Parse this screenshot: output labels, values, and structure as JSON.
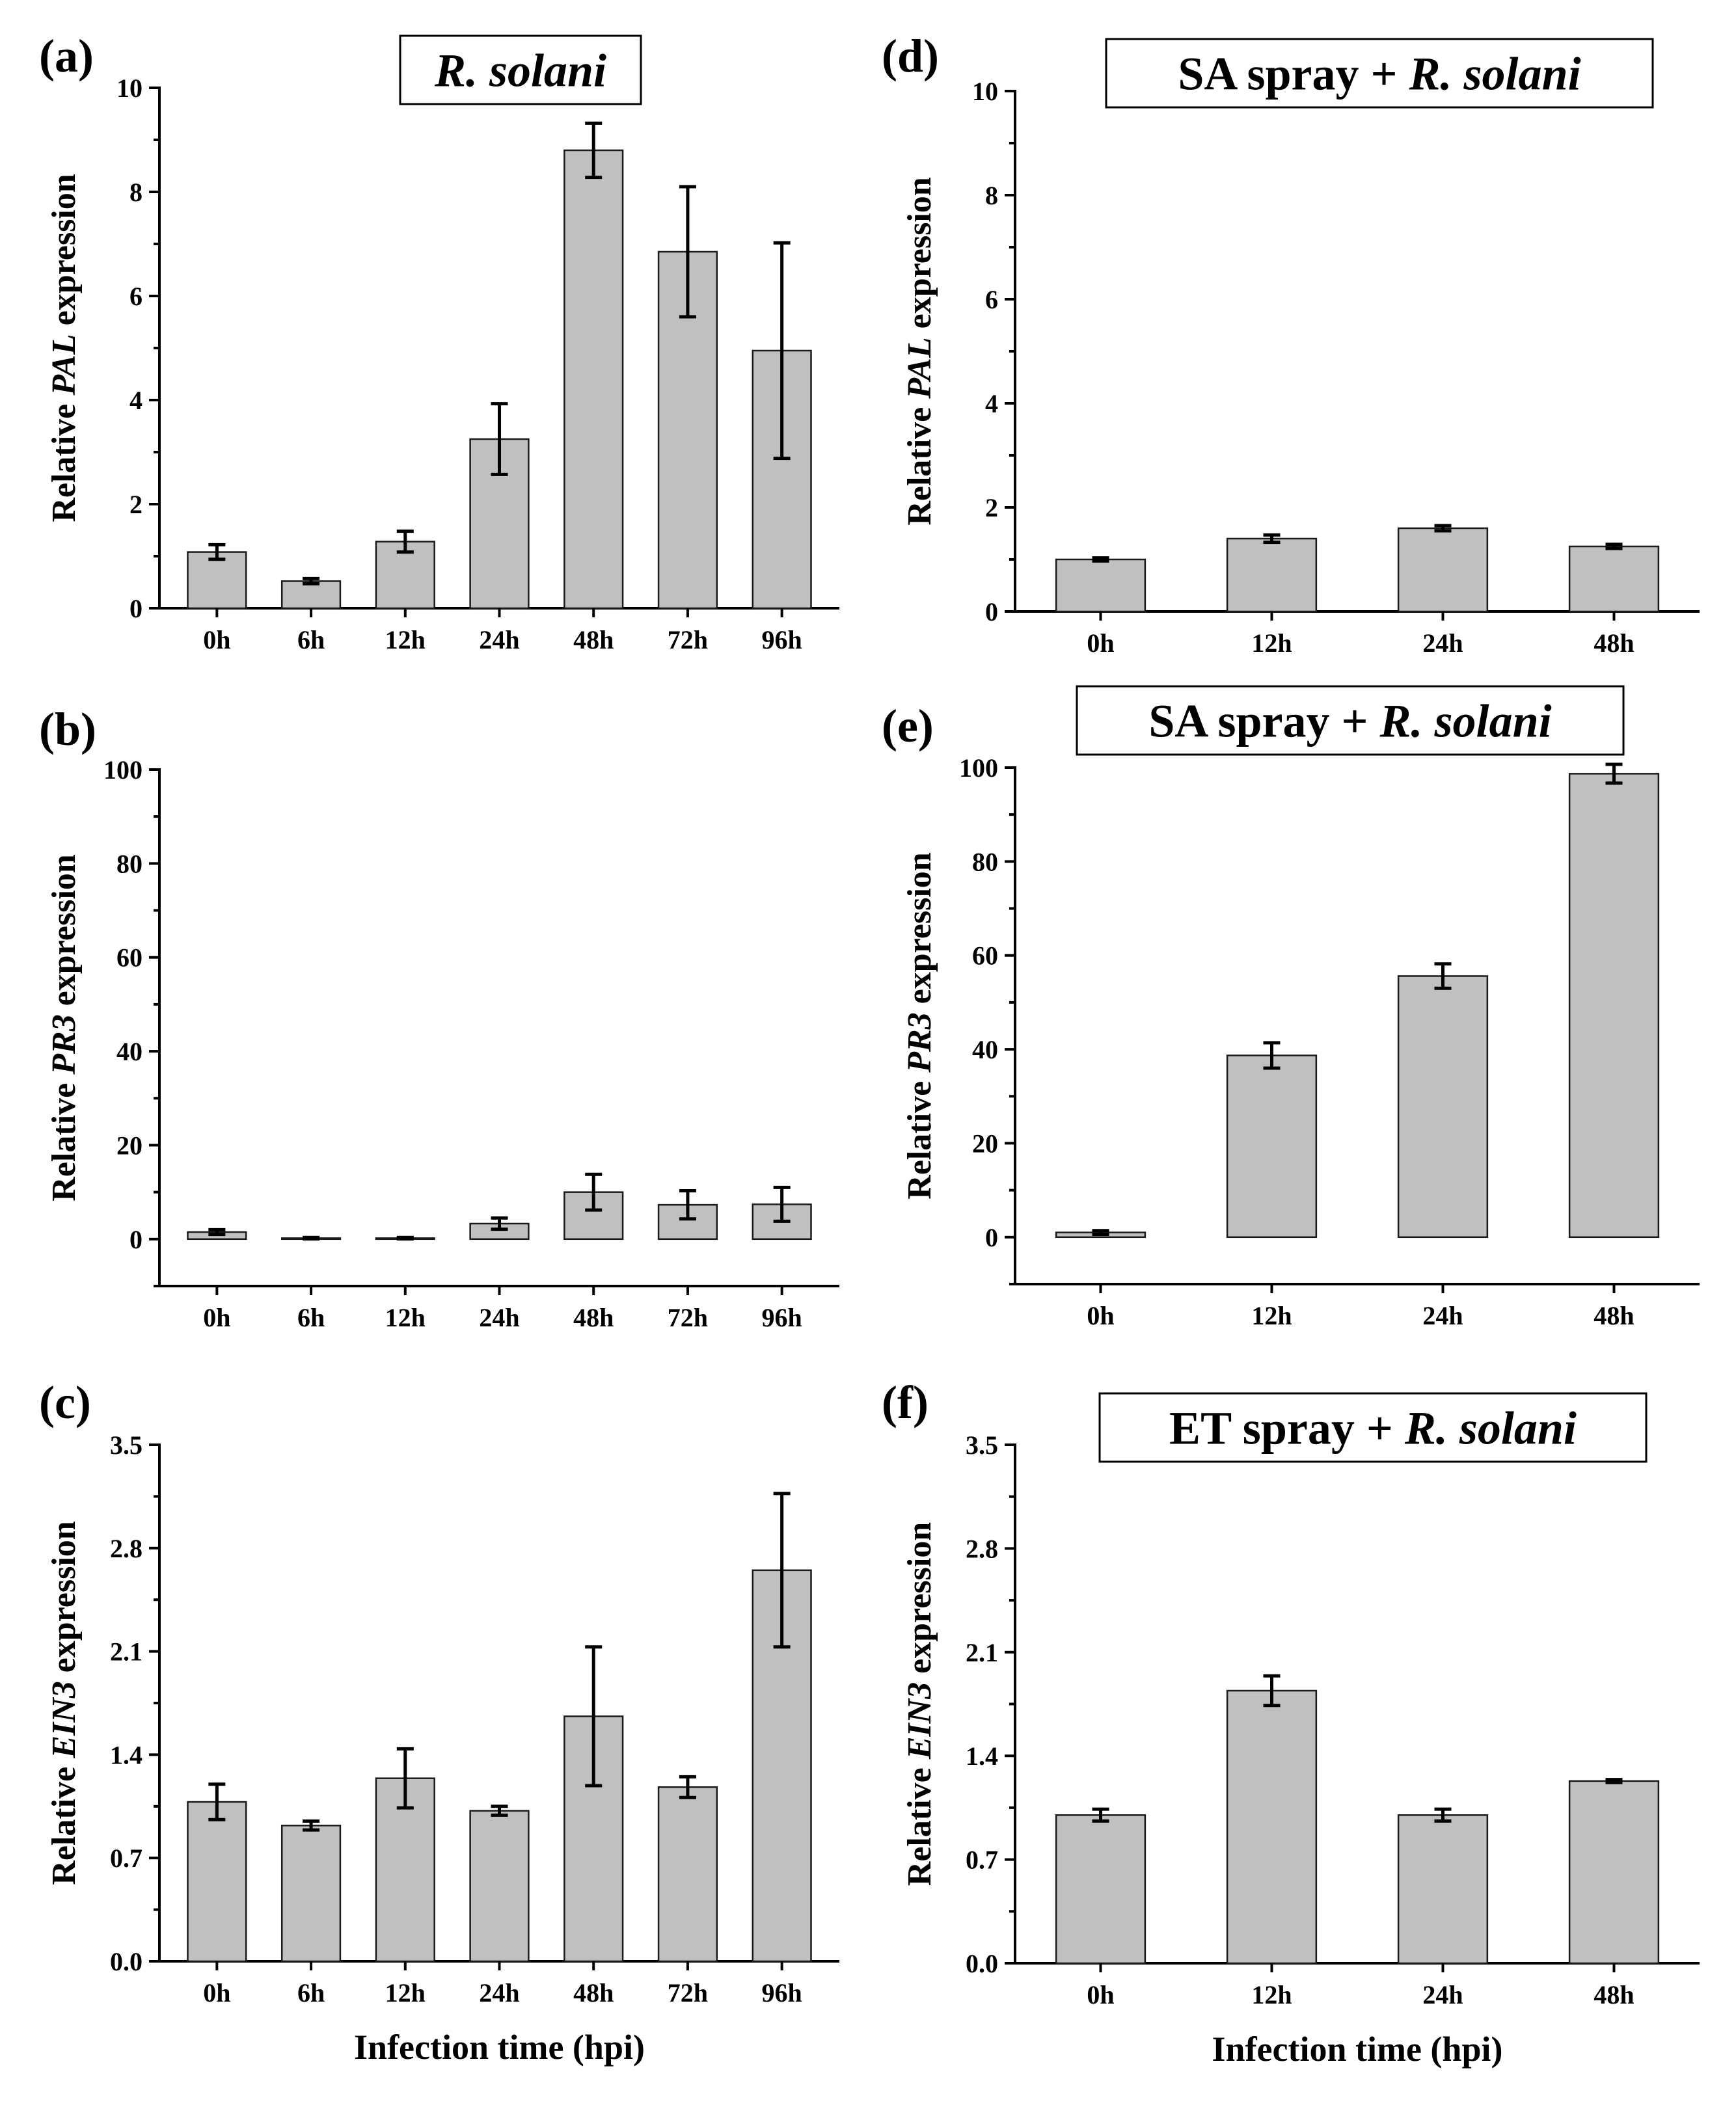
{
  "figure": {
    "xlabel_bottom": "Infection time (hpi)"
  },
  "chart_data": [
    {
      "id": "a",
      "panel_letter": "(a)",
      "type": "bar",
      "title_parts": [
        {
          "text": "R. solani",
          "italic": true
        }
      ],
      "ylabel_parts": [
        {
          "text": "Relative ",
          "italic": false
        },
        {
          "text": "PAL",
          "italic": true
        },
        {
          "text": " expression",
          "italic": false
        }
      ],
      "categories": [
        "0h",
        "6h",
        "12h",
        "24h",
        "48h",
        "72h",
        "96h"
      ],
      "values": [
        1.08,
        0.52,
        1.28,
        3.25,
        8.8,
        6.85,
        4.95
      ],
      "errors": [
        0.14,
        0.05,
        0.2,
        0.68,
        0.52,
        1.25,
        2.07
      ],
      "ylim": [
        0,
        10
      ],
      "yticks": [
        0,
        2,
        4,
        6,
        8,
        10
      ],
      "ytick_labels": [
        "0",
        "2",
        "4",
        "6",
        "8",
        "10"
      ]
    },
    {
      "id": "b",
      "panel_letter": "(b)",
      "type": "bar",
      "title_parts": [],
      "ylabel_parts": [
        {
          "text": "Relative ",
          "italic": false
        },
        {
          "text": "PR3",
          "italic": true
        },
        {
          "text": " expression",
          "italic": false
        }
      ],
      "categories": [
        "0h",
        "6h",
        "12h",
        "24h",
        "48h",
        "72h",
        "96h"
      ],
      "values": [
        1.5,
        0.2,
        0.2,
        3.3,
        10.0,
        7.3,
        7.4
      ],
      "errors": [
        0.5,
        0.15,
        0.15,
        1.2,
        3.8,
        3.0,
        3.6
      ],
      "ylim": [
        -10,
        100
      ],
      "yticks": [
        0,
        20,
        40,
        60,
        80,
        100
      ],
      "ytick_labels": [
        "0",
        "20",
        "40",
        "60",
        "80",
        "100"
      ]
    },
    {
      "id": "c",
      "panel_letter": "(c)",
      "type": "bar",
      "title_parts": [],
      "ylabel_parts": [
        {
          "text": "Relative ",
          "italic": false
        },
        {
          "text": "EIN3",
          "italic": true
        },
        {
          "text": " expression",
          "italic": false
        }
      ],
      "categories": [
        "0h",
        "6h",
        "12h",
        "24h",
        "48h",
        "72h",
        "96h"
      ],
      "values": [
        1.08,
        0.92,
        1.24,
        1.02,
        1.66,
        1.18,
        2.65
      ],
      "errors": [
        0.12,
        0.03,
        0.2,
        0.03,
        0.47,
        0.07,
        0.52
      ],
      "ylim": [
        0,
        3.5
      ],
      "yticks": [
        0,
        0.7,
        1.4,
        2.1,
        2.8,
        3.5
      ],
      "ytick_labels": [
        "0.0",
        "0.7",
        "1.4",
        "2.1",
        "2.8",
        "3.5"
      ],
      "show_xlabel": true
    },
    {
      "id": "d",
      "panel_letter": "(d)",
      "type": "bar",
      "title_parts": [
        {
          "text": "SA spray + ",
          "italic": false
        },
        {
          "text": "R. solani",
          "italic": true
        }
      ],
      "ylabel_parts": [
        {
          "text": "Relative ",
          "italic": false
        },
        {
          "text": "PAL",
          "italic": true
        },
        {
          "text": " expression",
          "italic": false
        }
      ],
      "categories": [
        "0h",
        "12h",
        "24h",
        "48h"
      ],
      "values": [
        1.0,
        1.4,
        1.6,
        1.25
      ],
      "errors": [
        0.03,
        0.07,
        0.05,
        0.04
      ],
      "ylim": [
        0,
        10
      ],
      "yticks": [
        0,
        2,
        4,
        6,
        8,
        10
      ],
      "ytick_labels": [
        "0",
        "2",
        "4",
        "6",
        "8",
        "10"
      ]
    },
    {
      "id": "e",
      "panel_letter": "(e)",
      "type": "bar",
      "title_parts": [
        {
          "text": "SA spray + ",
          "italic": false
        },
        {
          "text": "R. solani",
          "italic": true
        }
      ],
      "ylabel_parts": [
        {
          "text": "Relative ",
          "italic": false
        },
        {
          "text": "PR3",
          "italic": true
        },
        {
          "text": " expression",
          "italic": false
        }
      ],
      "categories": [
        "0h",
        "12h",
        "24h",
        "48h"
      ],
      "values": [
        1.0,
        38.7,
        55.6,
        98.7
      ],
      "errors": [
        0.4,
        2.7,
        2.6,
        2.0
      ],
      "ylim": [
        -10,
        100
      ],
      "yticks": [
        0,
        20,
        40,
        60,
        80,
        100
      ],
      "ytick_labels": [
        "0",
        "20",
        "40",
        "60",
        "80",
        "100"
      ]
    },
    {
      "id": "f",
      "panel_letter": "(f)",
      "type": "bar",
      "title_parts": [
        {
          "text": "ET spray + ",
          "italic": false
        },
        {
          "text": "R. solani",
          "italic": true
        }
      ],
      "ylabel_parts": [
        {
          "text": "Relative ",
          "italic": false
        },
        {
          "text": "EIN3",
          "italic": true
        },
        {
          "text": " expression",
          "italic": false
        }
      ],
      "categories": [
        "0h",
        "12h",
        "24h",
        "48h"
      ],
      "values": [
        1.0,
        1.84,
        1.0,
        1.23
      ],
      "errors": [
        0.04,
        0.1,
        0.04,
        0.01
      ],
      "ylim": [
        0,
        3.5
      ],
      "yticks": [
        0,
        0.7,
        1.4,
        2.1,
        2.8,
        3.5
      ],
      "ytick_labels": [
        "0.0",
        "0.7",
        "1.4",
        "2.1",
        "2.8",
        "3.5"
      ],
      "show_xlabel": true
    }
  ]
}
